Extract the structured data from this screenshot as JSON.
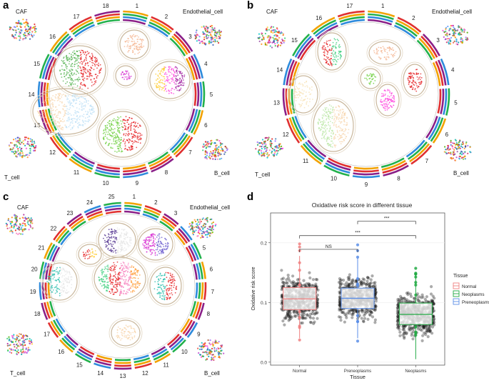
{
  "panels": {
    "a": {
      "letter": "a",
      "clusters": {
        "caf": "CAF",
        "endo": "Endothelial_cell",
        "t": "T_cell",
        "b": "B_cell"
      }
    },
    "b": {
      "letter": "b",
      "clusters": {
        "caf": "CAF",
        "endo": "Endothelial_cell",
        "t": "T_cell",
        "b": "B_cell"
      }
    },
    "c": {
      "letter": "c",
      "clusters": {
        "caf": "CAF",
        "endo": "Endothelial_cell",
        "t": "T_cell",
        "b": "B_cell"
      }
    },
    "d": {
      "letter": "d"
    }
  },
  "ring_labels": {
    "a": [
      "1",
      "2",
      "3",
      "4",
      "5",
      "6",
      "7",
      "8",
      "9",
      "10",
      "11",
      "12",
      "13",
      "14",
      "15",
      "16",
      "17",
      "18"
    ],
    "b": [
      "1",
      "2",
      "3",
      "4",
      "5",
      "6",
      "7",
      "8",
      "9",
      "10",
      "11",
      "12",
      "13",
      "14",
      "15",
      "16",
      "17"
    ],
    "c": [
      "1",
      "2",
      "3",
      "4",
      "5",
      "6",
      "7",
      "8",
      "9",
      "10",
      "11",
      "12",
      "13",
      "14",
      "15",
      "16",
      "17",
      "18",
      "19",
      "20",
      "21",
      "22",
      "23",
      "24",
      "25"
    ]
  },
  "colors": {
    "normal": "#f08080",
    "neoplasms": "#22aa44",
    "preneoplasms": "#5b8ee8",
    "points": "#111111"
  },
  "chart_data": {
    "type": "boxplot",
    "title": "Oxidative risk score in different tissue",
    "xlabel": "Tissue",
    "ylabel": "Oxidative risk score",
    "ylim": [
      -0.005,
      0.25
    ],
    "yticks": [
      0.0,
      0.1,
      0.2
    ],
    "ytick_labels": [
      "0.0",
      "0.1",
      "0.2"
    ],
    "categories": [
      "Normal",
      "Preneoplasms",
      "Neoplasms"
    ],
    "series": [
      {
        "name": "Normal",
        "min": 0.04,
        "q1": 0.088,
        "median": 0.106,
        "q3": 0.125,
        "max": 0.178,
        "outlier_range": [
          0.03,
          0.2
        ]
      },
      {
        "name": "Preneoplasms",
        "min": 0.04,
        "q1": 0.09,
        "median": 0.107,
        "q3": 0.124,
        "max": 0.175,
        "outlier_range": [
          0.025,
          0.2
        ]
      },
      {
        "name": "Neoplasms",
        "min": 0.005,
        "q1": 0.063,
        "median": 0.08,
        "q3": 0.099,
        "max": 0.15,
        "outlier_range": [
          0.003,
          0.16
        ]
      }
    ],
    "significance": [
      {
        "from": "Normal",
        "to": "Preneoplasms",
        "label": "NS",
        "y": 0.189
      },
      {
        "from": "Normal",
        "to": "Neoplasms",
        "label": "***",
        "y": 0.212
      },
      {
        "from": "Preneoplasms",
        "to": "Neoplasms",
        "label": "***",
        "y": 0.236
      }
    ],
    "legend": {
      "title": "Tissue",
      "entries": [
        "Normal",
        "Neoplasms",
        "Preneoplasms"
      ],
      "placement": "right"
    }
  }
}
